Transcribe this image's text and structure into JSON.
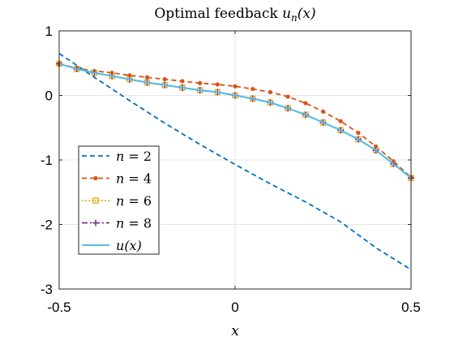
{
  "chart_data": {
    "type": "line",
    "title": "Optimal feedback u_n(x)",
    "title_parts": {
      "main": "Optimal feedback ",
      "fn": "u",
      "sub": "n",
      "arg": "(x)"
    },
    "xlabel": "x",
    "ylabel": "",
    "xlim": [
      -0.5,
      0.5
    ],
    "ylim": [
      -3,
      1
    ],
    "xticks": [
      -0.5,
      0,
      0.5
    ],
    "xtick_labels": [
      "-0.5",
      "0",
      "0.5"
    ],
    "yticks": [
      -3,
      -2,
      -1,
      0,
      1
    ],
    "ytick_labels": [
      "-3",
      "-2",
      "-1",
      "0",
      "1"
    ],
    "grid": true,
    "legend_position": "left",
    "series": [
      {
        "name": "n = 2",
        "legend": {
          "var": "n",
          "eq": " = 2"
        },
        "color": "#0072BD",
        "dash": "dashed",
        "marker": "none",
        "x": [
          -0.5,
          -0.4,
          -0.3,
          -0.2,
          -0.1,
          0,
          0.1,
          0.2,
          0.3,
          0.4,
          0.5
        ],
        "y": [
          0.65,
          0.28,
          -0.08,
          -0.43,
          -0.76,
          -1.07,
          -1.37,
          -1.65,
          -1.96,
          -2.36,
          -2.7
        ]
      },
      {
        "name": "n = 4",
        "legend": {
          "var": "n",
          "eq": " = 4"
        },
        "color": "#D95319",
        "dash": "dashed",
        "marker": "dot",
        "x": [
          -0.5,
          -0.45,
          -0.4,
          -0.35,
          -0.3,
          -0.25,
          -0.2,
          -0.15,
          -0.1,
          -0.05,
          0,
          0.05,
          0.1,
          0.15,
          0.2,
          0.25,
          0.3,
          0.35,
          0.4,
          0.45,
          0.5
        ],
        "y": [
          0.49,
          0.42,
          0.38,
          0.35,
          0.31,
          0.28,
          0.25,
          0.22,
          0.19,
          0.17,
          0.14,
          0.1,
          0.05,
          -0.02,
          -0.12,
          -0.25,
          -0.4,
          -0.58,
          -0.79,
          -1.02,
          -1.27
        ]
      },
      {
        "name": "n = 6",
        "legend": {
          "var": "n",
          "eq": " = 6"
        },
        "color": "#EDB120",
        "dash": "dotted",
        "marker": "square",
        "x": [
          -0.5,
          -0.45,
          -0.4,
          -0.35,
          -0.3,
          -0.25,
          -0.2,
          -0.15,
          -0.1,
          -0.05,
          0,
          0.05,
          0.1,
          0.15,
          0.2,
          0.25,
          0.3,
          0.35,
          0.4,
          0.45,
          0.5
        ],
        "y": [
          0.49,
          0.41,
          0.35,
          0.3,
          0.25,
          0.2,
          0.16,
          0.12,
          0.08,
          0.05,
          0.0,
          -0.05,
          -0.11,
          -0.2,
          -0.3,
          -0.42,
          -0.54,
          -0.68,
          -0.85,
          -1.06,
          -1.28
        ]
      },
      {
        "name": "n = 8",
        "legend": {
          "var": "n",
          "eq": " = 8"
        },
        "color": "#7E2F8E",
        "dash": "dashdot",
        "marker": "plus",
        "x": [
          -0.5,
          -0.45,
          -0.4,
          -0.35,
          -0.3,
          -0.25,
          -0.2,
          -0.15,
          -0.1,
          -0.05,
          0,
          0.05,
          0.1,
          0.15,
          0.2,
          0.25,
          0.3,
          0.35,
          0.4,
          0.45,
          0.5
        ],
        "y": [
          0.49,
          0.41,
          0.35,
          0.3,
          0.25,
          0.2,
          0.16,
          0.12,
          0.08,
          0.05,
          0.0,
          -0.05,
          -0.11,
          -0.2,
          -0.3,
          -0.42,
          -0.54,
          -0.68,
          -0.85,
          -1.06,
          -1.28
        ]
      },
      {
        "name": "u(x)",
        "legend": {
          "var": "u",
          "eq": "(x)"
        },
        "color": "#4DBEEE",
        "dash": "solid",
        "marker": "none",
        "x": [
          -0.5,
          -0.45,
          -0.4,
          -0.35,
          -0.3,
          -0.25,
          -0.2,
          -0.15,
          -0.1,
          -0.05,
          0,
          0.05,
          0.1,
          0.15,
          0.2,
          0.25,
          0.3,
          0.35,
          0.4,
          0.45,
          0.5
        ],
        "y": [
          0.49,
          0.41,
          0.35,
          0.3,
          0.25,
          0.2,
          0.16,
          0.12,
          0.08,
          0.05,
          0.0,
          -0.05,
          -0.11,
          -0.2,
          -0.3,
          -0.42,
          -0.54,
          -0.68,
          -0.85,
          -1.06,
          -1.28
        ]
      }
    ]
  }
}
